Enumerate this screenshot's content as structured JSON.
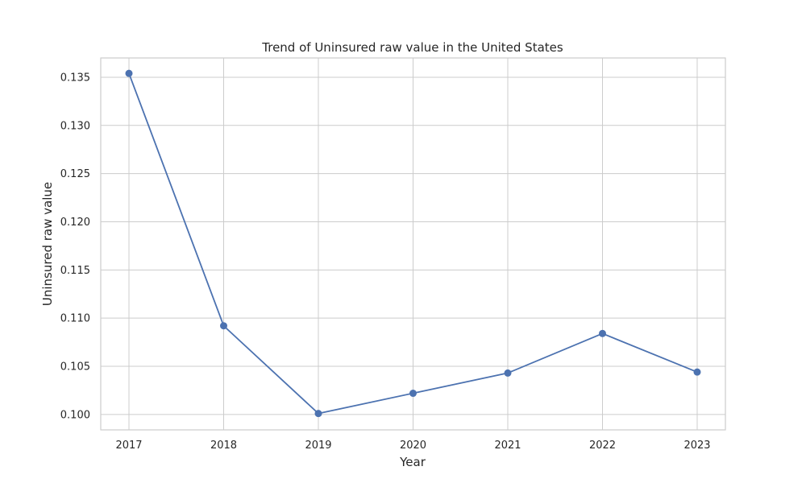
{
  "chart_data": {
    "type": "line",
    "title": "Trend of Uninsured raw value in the United States",
    "xlabel": "Year",
    "ylabel": "Uninsured raw value",
    "x": [
      "2017",
      "2018",
      "2019",
      "2020",
      "2021",
      "2022",
      "2023"
    ],
    "series": [
      {
        "values": [
          0.1354,
          0.1092,
          0.1001,
          0.1022,
          0.1043,
          0.1084,
          0.1044
        ],
        "color": "#4c72b0"
      }
    ],
    "yticks": [
      "0.100",
      "0.105",
      "0.110",
      "0.115",
      "0.120",
      "0.125",
      "0.130",
      "0.135"
    ],
    "ylim": [
      0.0984,
      0.137
    ],
    "grid": true,
    "legend": "none"
  }
}
